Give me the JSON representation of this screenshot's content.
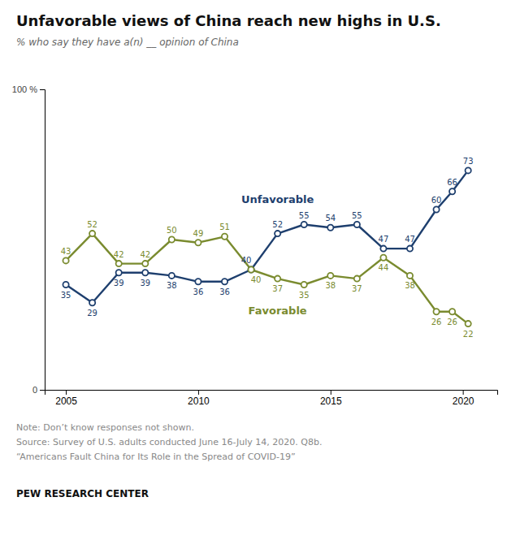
{
  "chart_data": {
    "type": "line",
    "title": "Unfavorable views of China reach new highs in U.S.",
    "subtitle": "% who say they have a(n) __ opinion of China",
    "x": [
      2005,
      2006,
      2007,
      2008,
      2009,
      2010,
      2011,
      2012,
      2013,
      2014,
      2015,
      2016,
      2017,
      2018,
      2019,
      2019.6,
      2020.2
    ],
    "series": [
      {
        "name": "Unfavorable",
        "color": "#1e3f6e",
        "values": [
          35,
          29,
          39,
          39,
          38,
          36,
          36,
          40,
          52,
          55,
          54,
          55,
          47,
          47,
          60,
          66,
          73
        ]
      },
      {
        "name": "Favorable",
        "color": "#7a8b2f",
        "values": [
          43,
          52,
          42,
          42,
          50,
          49,
          51,
          40,
          37,
          35,
          38,
          37,
          44,
          38,
          26,
          26,
          22
        ]
      }
    ],
    "xlim": [
      2004.2,
      2021.3
    ],
    "xticks": [
      2005,
      2010,
      2015,
      2020
    ],
    "ylim": [
      0,
      100
    ],
    "yticks": [
      0,
      {
        "value": 100,
        "label": "100 %"
      }
    ],
    "marker": "circle",
    "data_labels": true,
    "grid": false,
    "notes": [
      "Note: Don’t know responses not shown.",
      "Source: Survey of U.S. adults conducted June 16-July 14, 2020. Q8b.",
      "“Americans Fault China for Its Role in the Spread of COVID-19”"
    ],
    "footer": "PEW RESEARCH CENTER"
  }
}
